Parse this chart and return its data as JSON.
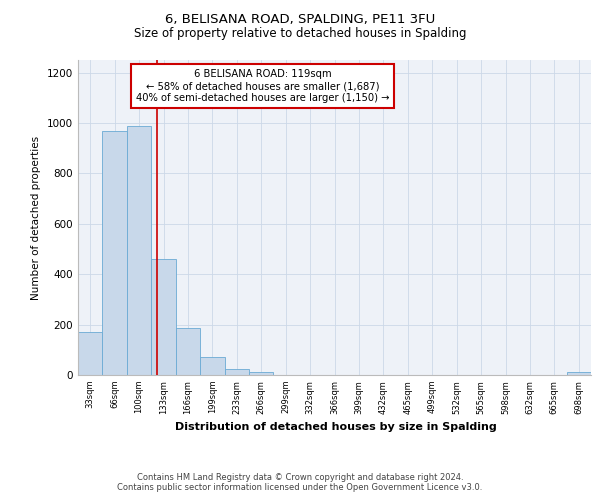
{
  "title1": "6, BELISANA ROAD, SPALDING, PE11 3FU",
  "title2": "Size of property relative to detached houses in Spalding",
  "xlabel": "Distribution of detached houses by size in Spalding",
  "ylabel": "Number of detached properties",
  "footnote": "Contains HM Land Registry data © Crown copyright and database right 2024.\nContains public sector information licensed under the Open Government Licence v3.0.",
  "bar_color": "#c8d8ea",
  "bar_edge_color": "#6aaad4",
  "bin_labels": [
    "33sqm",
    "66sqm",
    "100sqm",
    "133sqm",
    "166sqm",
    "199sqm",
    "233sqm",
    "266sqm",
    "299sqm",
    "332sqm",
    "366sqm",
    "399sqm",
    "432sqm",
    "465sqm",
    "499sqm",
    "532sqm",
    "565sqm",
    "598sqm",
    "632sqm",
    "665sqm",
    "698sqm"
  ],
  "bar_heights": [
    170,
    970,
    990,
    460,
    185,
    70,
    25,
    10,
    0,
    0,
    0,
    0,
    0,
    0,
    0,
    0,
    0,
    0,
    0,
    0,
    10
  ],
  "ylim": [
    0,
    1250
  ],
  "yticks": [
    0,
    200,
    400,
    600,
    800,
    1000,
    1200
  ],
  "annotation_text": "6 BELISANA ROAD: 119sqm\n← 58% of detached houses are smaller (1,687)\n40% of semi-detached houses are larger (1,150) →",
  "vline_color": "#cc0000",
  "vline_x_bin": 2.75,
  "annotation_box_color": "#ffffff",
  "annotation_box_edge": "#cc0000",
  "grid_color": "#ccd8e8",
  "background_color": "#eef2f8"
}
